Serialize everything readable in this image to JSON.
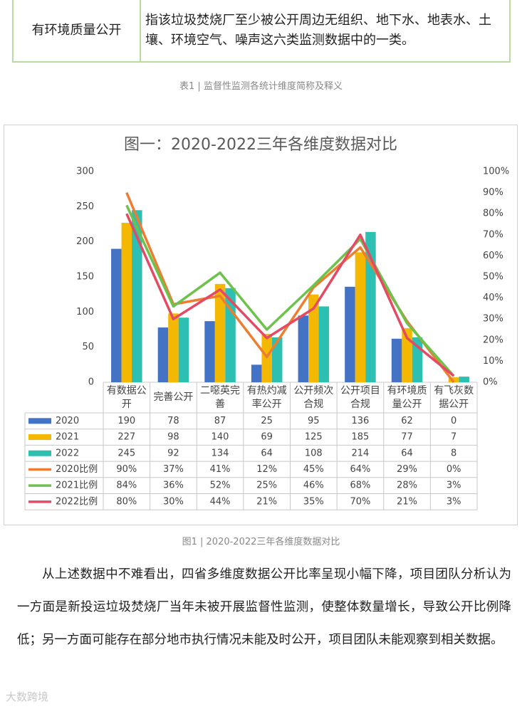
{
  "table": {
    "rows": [
      [
        "有环境质量公开",
        "指该垃圾焚烧厂至少被公开周边无组织、地下水、地表水、土壤、环境空气、噪声这六类监测数据中的一类。"
      ]
    ],
    "caption": "表1 | 监督性监测各统计维度简称及释义"
  },
  "chart_data": {
    "type": "bar",
    "title": "图一：2020-2022三年各维度数据对比",
    "categories": [
      "有数据公开",
      "完善公开",
      "二噁英完善",
      "有热灼减率公开",
      "公开频次合规",
      "公开项目合规",
      "有环境质量公开",
      "有飞灰数据公开"
    ],
    "series": [
      {
        "name": "2020",
        "color": "#4472c4",
        "values": [
          190,
          78,
          87,
          25,
          95,
          136,
          62,
          0
        ]
      },
      {
        "name": "2021",
        "color": "#f5b800",
        "values": [
          227,
          98,
          140,
          69,
          125,
          185,
          77,
          7
        ]
      },
      {
        "name": "2022",
        "color": "#2dbfb1",
        "values": [
          245,
          92,
          134,
          64,
          108,
          214,
          64,
          8
        ]
      },
      {
        "name": "2020比例",
        "type": "line",
        "axis": "y2",
        "color": "#ed7d31",
        "values": [
          90,
          37,
          41,
          12,
          45,
          64,
          29,
          0
        ],
        "value_labels": [
          "90%",
          "37%",
          "41%",
          "12%",
          "45%",
          "64%",
          "29%",
          "0%"
        ]
      },
      {
        "name": "2021比例",
        "type": "line",
        "axis": "y2",
        "color": "#6cc24a",
        "values": [
          84,
          36,
          52,
          25,
          46,
          68,
          28,
          3
        ],
        "value_labels": [
          "84%",
          "36%",
          "52%",
          "25%",
          "46%",
          "68%",
          "28%",
          "3%"
        ]
      },
      {
        "name": "2022比例",
        "type": "line",
        "axis": "y2",
        "color": "#e44a63",
        "values": [
          80,
          30,
          44,
          21,
          35,
          70,
          21,
          3
        ],
        "value_labels": [
          "80%",
          "30%",
          "44%",
          "21%",
          "35%",
          "70%",
          "21%",
          "3%"
        ]
      }
    ],
    "ylim": [
      0,
      300
    ],
    "yticks": [
      0,
      50,
      100,
      150,
      200,
      250,
      300
    ],
    "y2lim": [
      0,
      100
    ],
    "y2ticks": [
      {
        "value": 0,
        "label": "0%"
      },
      {
        "value": 10,
        "label": "10%"
      },
      {
        "value": 20,
        "label": "20%"
      },
      {
        "value": 30,
        "label": "30%"
      },
      {
        "value": 40,
        "label": "40%"
      },
      {
        "value": 50,
        "label": "50%"
      },
      {
        "value": 60,
        "label": "60%"
      },
      {
        "value": 70,
        "label": "70%"
      },
      {
        "value": 80,
        "label": "80%"
      },
      {
        "value": 90,
        "label": "90%"
      },
      {
        "value": 100,
        "label": "100%"
      }
    ],
    "grid": false,
    "data_table": true
  },
  "figure_caption": "图1 | 2020-2022三年各维度数据对比",
  "paragraph": "从上述数据中不难看出，四省多维度数据公开比率呈现小幅下降，项目团队分析认为一方面是新投运垃圾焚烧厂当年未被开展监督性监测，使整体数量增长，导致公开比例降低；另一方面可能存在部分地市执行情况未能及时公开，项目团队未能观察到相关数据。",
  "watermark": "大数跨境"
}
